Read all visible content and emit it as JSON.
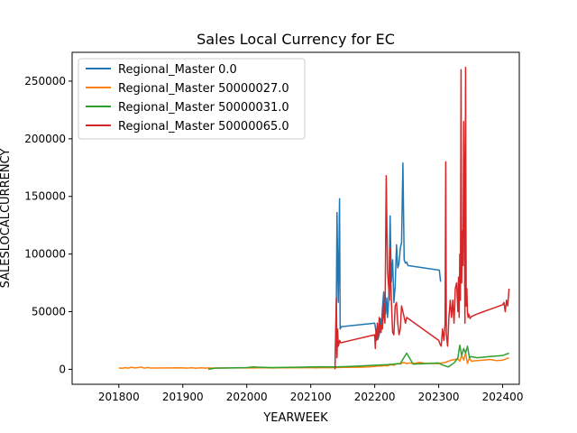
{
  "chart_data": {
    "type": "line",
    "title": "Sales Local Currency for EC",
    "xlabel": "YEARWEEK",
    "ylabel": "SALESLOCALCURRENCY",
    "xlim": [
      201727,
      202426
    ],
    "ylim": [
      -13000,
      275000
    ],
    "x_ticks": [
      201800,
      201900,
      202000,
      202100,
      202200,
      202300,
      202400
    ],
    "y_ticks": [
      0,
      50000,
      100000,
      150000,
      200000,
      250000
    ],
    "x_tick_labels": [
      "201800",
      "201900",
      "202000",
      "202100",
      "202200",
      "202300",
      "202400"
    ],
    "y_tick_labels": [
      "0",
      "50000",
      "100000",
      "150000",
      "200000",
      "250000"
    ],
    "grid": false,
    "legend_position": "upper-left",
    "series": [
      {
        "name": "Regional_Master 0.0",
        "color": "#1f77b4",
        "x": [
          202138,
          202140,
          202141,
          202142,
          202143,
          202144,
          202145,
          202146,
          202148,
          202200,
          202201,
          202203,
          202205,
          202207,
          202209,
          202210,
          202212,
          202214,
          202215,
          202217,
          202219,
          202220,
          202222,
          202224,
          202226,
          202228,
          202230,
          202232,
          202234,
          202236,
          202238,
          202240,
          202242,
          202244,
          202246,
          202248,
          202250,
          202252,
          202301,
          202303
        ],
        "y": [
          5000,
          60000,
          136000,
          92000,
          58000,
          100000,
          148000,
          35000,
          37000,
          40000,
          37000,
          28000,
          26000,
          30000,
          44000,
          32000,
          52000,
          67000,
          55000,
          48000,
          62000,
          45000,
          60000,
          133000,
          76000,
          95000,
          58000,
          72000,
          108000,
          88000,
          92000,
          105000,
          110000,
          179000,
          95000,
          92000,
          93000,
          90000,
          86000,
          76000
        ]
      },
      {
        "name": "Regional_Master 50000027.0",
        "color": "#ff7f0e",
        "x": [
          201800,
          201805,
          201810,
          201815,
          201820,
          201825,
          201830,
          201835,
          201840,
          201845,
          201850,
          201900,
          201905,
          201910,
          201915,
          201920,
          201925,
          201930,
          201935,
          201940,
          201945,
          202000,
          202010,
          202020,
          202030,
          202040,
          202050,
          202100,
          202110,
          202120,
          202130,
          202140,
          202150,
          202160,
          202170,
          202180,
          202190,
          202200,
          202205,
          202210,
          202215,
          202220,
          202225,
          202230,
          202235,
          202240,
          202245,
          202250,
          202255,
          202260,
          202265,
          202270,
          202275,
          202280,
          202285,
          202290,
          202295,
          202300,
          202310,
          202320,
          202330,
          202333,
          202336,
          202339,
          202342,
          202345,
          202348,
          202351,
          202360,
          202370,
          202380,
          202390,
          202400,
          202405,
          202410
        ],
        "y": [
          1200,
          900,
          1400,
          1000,
          1800,
          1200,
          1500,
          2000,
          900,
          1600,
          1100,
          1300,
          1000,
          1200,
          1400,
          900,
          1200,
          1300,
          1000,
          1200,
          1100,
          1300,
          1200,
          1400,
          1300,
          1200,
          1300,
          1400,
          1300,
          1500,
          1400,
          1500,
          1600,
          1700,
          1800,
          1900,
          2000,
          2500,
          3000,
          2800,
          3200,
          3000,
          4000,
          3500,
          5000,
          4500,
          6000,
          5000,
          5500,
          5000,
          5500,
          6000,
          5500,
          5000,
          5200,
          5000,
          5100,
          5000,
          6000,
          8000,
          9000,
          7000,
          12000,
          8000,
          14000,
          5000,
          10000,
          7000,
          7500,
          8000,
          8500,
          7500,
          8000,
          9000,
          10000
        ]
      },
      {
        "name": "Regional_Master 50000031.0",
        "color": "#2ca02c",
        "x": [
          201940,
          201950,
          202000,
          202010,
          202020,
          202040,
          202060,
          202080,
          202100,
          202120,
          202140,
          202160,
          202180,
          202200,
          202220,
          202240,
          202250,
          202260,
          202280,
          202300,
          202305,
          202310,
          202315,
          202320,
          202325,
          202330,
          202333,
          202336,
          202339,
          202342,
          202345,
          202348,
          202350,
          202360,
          202380,
          202400,
          202405,
          202410
        ],
        "y": [
          0,
          1000,
          1500,
          2000,
          1800,
          1500,
          1600,
          1800,
          2000,
          2200,
          2000,
          2500,
          3000,
          3500,
          4000,
          5000,
          14000,
          4500,
          5000,
          5500,
          4000,
          3000,
          2000,
          4000,
          6000,
          10000,
          21000,
          12000,
          18000,
          14000,
          20000,
          10000,
          11000,
          10000,
          11000,
          12000,
          13000,
          14000
        ]
      },
      {
        "name": "Regional_Master 50000065.0",
        "color": "#d62728",
        "x": [
          202138,
          202139,
          202140,
          202141,
          202142,
          202143,
          202144,
          202145,
          202147,
          202200,
          202201,
          202202,
          202203,
          202204,
          202205,
          202206,
          202207,
          202208,
          202209,
          202210,
          202212,
          202214,
          202215,
          202216,
          202218,
          202220,
          202222,
          202223,
          202224,
          202225,
          202226,
          202227,
          202228,
          202230,
          202232,
          202234,
          202236,
          202238,
          202240,
          202242,
          202244,
          202246,
          202248,
          202250,
          202300,
          202302,
          202304,
          202306,
          202308,
          202310,
          202311,
          202312,
          202314,
          202316,
          202318,
          202320,
          202322,
          202324,
          202326,
          202328,
          202330,
          202331,
          202332,
          202333,
          202334,
          202335,
          202336,
          202337,
          202338,
          202339,
          202340,
          202341,
          202342,
          202343,
          202344,
          202345,
          202346,
          202347,
          202348,
          202349,
          202350,
          202352,
          202360,
          202370,
          202380,
          202390,
          202400,
          202402,
          202404,
          202406,
          202408,
          202410
        ],
        "y": [
          0,
          25000,
          62000,
          10000,
          35000,
          20000,
          22000,
          25000,
          23000,
          30000,
          18000,
          35000,
          25000,
          40000,
          28000,
          30000,
          45000,
          40000,
          32000,
          38000,
          35000,
          57000,
          45000,
          40000,
          168000,
          85000,
          70000,
          60000,
          105000,
          80000,
          60000,
          45000,
          32000,
          30000,
          55000,
          58000,
          40000,
          30000,
          35000,
          55000,
          50000,
          45000,
          40000,
          45000,
          25000,
          22000,
          20000,
          35000,
          25000,
          40000,
          180000,
          30000,
          20000,
          45000,
          60000,
          45000,
          60000,
          40000,
          70000,
          75000,
          50000,
          80000,
          45000,
          100000,
          60000,
          260000,
          75000,
          120000,
          90000,
          215000,
          150000,
          40000,
          262000,
          55000,
          70000,
          50000,
          45000,
          48000,
          46000,
          44000,
          45000,
          46000,
          48000,
          50000,
          52000,
          54000,
          56000,
          58000,
          50000,
          60000,
          55000,
          70000
        ]
      }
    ]
  }
}
